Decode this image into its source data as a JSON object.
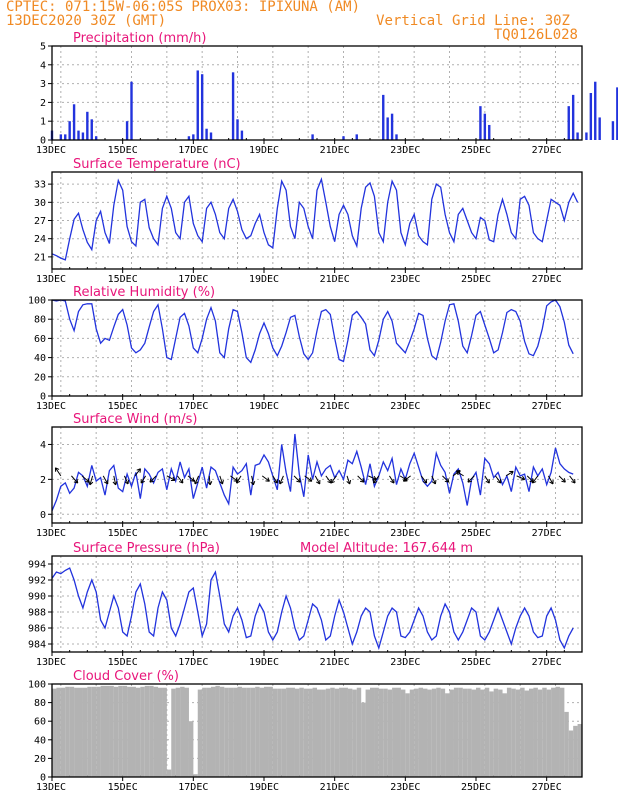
{
  "header": {
    "line1": "CPTEC:   071:15W-06:05S   PROX03: IPIXUNA (AM)",
    "line2_left": "13DEC2020 30Z (GMT)",
    "line2_right": "Vertical Grid Line: 30Z",
    "line3_right": "TQ0126L028"
  },
  "colors": {
    "series": "#2233dd",
    "title": "#e8157a",
    "header": "#f08a24",
    "cloud": "#b3b3b3",
    "grid": "#b0b0b0"
  },
  "chart_data": [
    {
      "id": "precip",
      "type": "bar",
      "title": "Precipitation (mm/h)",
      "x_start_day": 13,
      "x_days": 15,
      "step_hours": 3,
      "ylim": [
        0,
        5
      ],
      "yticks": [
        0,
        1,
        2,
        3,
        4,
        5
      ],
      "grid": true,
      "xticks": [
        "13DEC",
        "15DEC",
        "17DEC",
        "19DEC",
        "21DEC",
        "23DEC",
        "25DEC",
        "27DEC"
      ],
      "values": [
        0.5,
        0,
        0.3,
        0.3,
        1.0,
        1.9,
        0.5,
        0.4,
        1.5,
        1.1,
        0.2,
        0,
        0,
        0,
        0,
        0,
        0,
        1.0,
        3.1,
        0,
        0,
        0,
        0,
        0,
        0,
        0,
        0,
        0,
        0,
        0,
        0,
        0.2,
        0.3,
        3.7,
        3.5,
        0.6,
        0.4,
        0,
        0,
        0,
        0,
        3.6,
        1.1,
        0.5,
        0,
        0,
        0,
        0,
        0,
        0,
        0,
        0,
        0,
        0,
        0,
        0,
        0,
        0,
        0,
        0.3,
        0,
        0,
        0,
        0,
        0,
        0,
        0.2,
        0,
        0,
        0.3,
        0,
        0,
        0,
        0,
        0,
        2.4,
        1.2,
        1.4,
        0.3,
        0,
        0,
        0,
        0,
        0,
        0,
        0,
        0,
        0,
        0,
        0,
        0,
        0,
        0,
        0,
        0,
        0,
        0,
        1.8,
        1.4,
        0.8,
        0,
        0,
        0,
        0,
        0,
        0,
        0,
        0,
        0,
        0,
        0,
        0,
        0,
        0,
        0,
        0,
        0,
        1.8,
        2.4,
        0.4,
        0,
        0.4,
        2.5,
        3.1,
        1.2,
        0,
        0,
        1.0,
        2.8,
        0,
        0,
        0,
        0,
        0,
        0,
        0,
        0,
        1.1,
        0.3,
        1.0,
        2.5,
        0,
        0
      ]
    },
    {
      "id": "temp",
      "type": "line",
      "title": "Surface Temperature (nC)",
      "x_start_day": 13,
      "x_days": 15,
      "step_hours": 3,
      "ylim": [
        19,
        35
      ],
      "yticks": [
        21,
        24,
        27,
        30,
        33
      ],
      "grid": true,
      "xticks": [
        "13DEC",
        "15DEC",
        "17DEC",
        "19DEC",
        "21DEC",
        "23DEC",
        "25DEC",
        "27DEC"
      ],
      "values": [
        21.5,
        21.2,
        20.8,
        20.5,
        24.0,
        27.2,
        28.2,
        25.5,
        23.4,
        22.2,
        27.0,
        28.5,
        25.0,
        23.2,
        29.5,
        33.6,
        32.0,
        26.0,
        23.5,
        22.8,
        30.0,
        30.5,
        25.8,
        24.0,
        23.0,
        29.0,
        31.0,
        29.0,
        25.0,
        24.0,
        30.0,
        31.0,
        26.5,
        24.5,
        23.5,
        29.0,
        30.0,
        28.0,
        25.0,
        24.0,
        29.0,
        30.5,
        28.5,
        25.5,
        24.0,
        24.5,
        26.5,
        28.0,
        25.0,
        23.0,
        22.5,
        29.0,
        33.5,
        32.0,
        26.0,
        24.0,
        30.0,
        29.0,
        26.0,
        24.0,
        32.0,
        33.8,
        30.0,
        26.0,
        23.5,
        28.0,
        29.5,
        28.0,
        24.5,
        22.8,
        29.0,
        32.5,
        33.2,
        31.0,
        25.0,
        23.5,
        30.0,
        33.5,
        32.0,
        25.0,
        23.0,
        26.5,
        28.0,
        24.5,
        23.5,
        23.0,
        30.5,
        33.0,
        32.5,
        28.0,
        25.0,
        23.5,
        28.0,
        29.0,
        27.0,
        25.0,
        24.0,
        27.5,
        27.0,
        23.8,
        23.5,
        28.0,
        30.5,
        28.0,
        25.0,
        24.0,
        30.5,
        31.0,
        29.5,
        25.0,
        24.0,
        23.5,
        27.0,
        30.5,
        30.0,
        29.5,
        27.0,
        30.0,
        31.5,
        30.0
      ]
    },
    {
      "id": "rh",
      "type": "line",
      "title": "Relative Humidity (%)",
      "x_start_day": 13,
      "x_days": 15,
      "step_hours": 3,
      "ylim": [
        0,
        100
      ],
      "yticks": [
        0,
        20,
        40,
        60,
        80,
        100
      ],
      "grid": true,
      "xticks": [
        "13DEC",
        "15DEC",
        "17DEC",
        "19DEC",
        "21DEC",
        "23DEC",
        "25DEC",
        "27DEC"
      ],
      "values": [
        100,
        99,
        100,
        99,
        80,
        68,
        88,
        95,
        96,
        96,
        70,
        55,
        60,
        58,
        72,
        85,
        90,
        74,
        50,
        45,
        48,
        55,
        72,
        88,
        95,
        70,
        40,
        38,
        60,
        82,
        86,
        73,
        50,
        45,
        60,
        80,
        92,
        78,
        45,
        40,
        70,
        90,
        88,
        66,
        40,
        35,
        48,
        65,
        76,
        65,
        50,
        42,
        52,
        66,
        82,
        84,
        62,
        44,
        38,
        45,
        68,
        88,
        90,
        85,
        60,
        38,
        36,
        58,
        84,
        88,
        82,
        75,
        48,
        42,
        58,
        80,
        88,
        78,
        55,
        50,
        45,
        57,
        70,
        86,
        84,
        60,
        42,
        38,
        56,
        78,
        95,
        96,
        78,
        52,
        45,
        63,
        84,
        88,
        74,
        60,
        45,
        48,
        66,
        87,
        90,
        88,
        78,
        57,
        44,
        42,
        52,
        70,
        94,
        98,
        100,
        93,
        77,
        53,
        44
      ]
    },
    {
      "id": "wind",
      "type": "line",
      "title": "Surface Wind (m/s)",
      "x_start_day": 13,
      "x_days": 15,
      "step_hours": 3,
      "ylim": [
        -0.5,
        5
      ],
      "yticks": [
        0,
        2,
        4
      ],
      "grid": true,
      "xticks": [
        "13DEC",
        "15DEC",
        "17DEC",
        "19DEC",
        "21DEC",
        "23DEC",
        "25DEC",
        "27DEC"
      ],
      "values": [
        0.2,
        0.8,
        1.6,
        1.8,
        1.2,
        1.5,
        2.4,
        2.2,
        1.6,
        2.8,
        1.9,
        2.1,
        1.1,
        2.5,
        2.8,
        1.5,
        1.3,
        2.3,
        1.6,
        2.4,
        0.9,
        2.6,
        2.3,
        1.8,
        2.4,
        2.6,
        1.4,
        2.6,
        1.9,
        3.0,
        2.1,
        2.6,
        0.9,
        1.8,
        2.7,
        1.5,
        2.7,
        2.5,
        1.8,
        1.1,
        0.6,
        2.7,
        2.3,
        2.5,
        2.9,
        1.1,
        2.8,
        2.9,
        3.4,
        3.0,
        2.2,
        1.4,
        4.0,
        2.4,
        1.3,
        4.6,
        2.3,
        1.0,
        3.4,
        2.0,
        3.0,
        2.2,
        2.6,
        2.8,
        2.1,
        2.5,
        2.0,
        3.1,
        2.9,
        3.6,
        2.7,
        1.7,
        2.9,
        1.6,
        2.2,
        3.0,
        2.5,
        3.2,
        1.7,
        2.6,
        2.0,
        2.9,
        3.5,
        2.7,
        1.9,
        1.6,
        1.9,
        3.5,
        2.8,
        2.4,
        1.2,
        2.3,
        2.6,
        1.8,
        0.5,
        2.0,
        2.4,
        1.1,
        3.2,
        2.9,
        2.1,
        2.4,
        1.7,
        2.2,
        1.3,
        2.7,
        2.2,
        2.3,
        1.3,
        2.7,
        2.2,
        2.6,
        1.7,
        2.4,
        3.8,
        2.9,
        2.6,
        2.4,
        2.3
      ],
      "vectors": [
        [
          -0.6,
          0.9
        ],
        [
          0.7,
          -0.8
        ],
        [
          0.8,
          -0.7
        ],
        [
          -0.3,
          -1
        ],
        [
          0.5,
          -0.9
        ],
        [
          0.2,
          -1
        ],
        [
          0.4,
          -0.9
        ],
        [
          0.6,
          0.8
        ],
        [
          -0.5,
          -0.8
        ],
        [
          -0.7,
          -0.7
        ],
        [
          0.9,
          -0.5
        ],
        [
          0.6,
          -0.8
        ],
        [
          0.7,
          -0.6
        ],
        [
          -0.4,
          -0.9
        ],
        [
          0.1,
          -1
        ],
        [
          0.3,
          -0.9
        ],
        [
          0.8,
          -0.6
        ],
        [
          -0.5,
          -0.8
        ],
        [
          0.2,
          -1
        ],
        [
          0.8,
          -0.6
        ],
        [
          0.5,
          -0.8
        ],
        [
          -0.4,
          -0.9
        ],
        [
          0.7,
          -0.7
        ],
        [
          0.8,
          -0.6
        ],
        [
          0.5,
          -0.9
        ],
        [
          0.6,
          -0.8
        ],
        [
          -0.6,
          -0.8
        ],
        [
          0.3,
          -0.9
        ],
        [
          0.7,
          -0.7
        ],
        [
          0.9,
          -0.4
        ],
        [
          -0.6,
          -0.8
        ],
        [
          0.5,
          -0.8
        ],
        [
          0.8,
          -0.5
        ],
        [
          -0.8,
          -0.6
        ],
        [
          0.6,
          -0.8
        ],
        [
          0.4,
          -0.9
        ],
        [
          0.7,
          -0.7
        ],
        [
          0.8,
          0.6
        ],
        [
          -0.8,
          0.5
        ],
        [
          -0.7,
          -0.7
        ],
        [
          0.5,
          -0.8
        ],
        [
          0.6,
          -0.8
        ],
        [
          0.8,
          0.5
        ],
        [
          0.9,
          -0.4
        ],
        [
          0.7,
          -0.7
        ],
        [
          -0.6,
          -0.8
        ],
        [
          0.5,
          -0.9
        ],
        [
          0.7,
          -0.7
        ],
        [
          0.6,
          -0.8
        ]
      ]
    },
    {
      "id": "press",
      "type": "line",
      "title": "Surface Pressure (hPa)",
      "title2": "Model Altitude: 167.644 m",
      "x_start_day": 13,
      "x_days": 15,
      "step_hours": 3,
      "ylim": [
        983,
        995
      ],
      "yticks": [
        984,
        986,
        988,
        990,
        992,
        994
      ],
      "grid": true,
      "xticks": [
        "13DEC",
        "15DEC",
        "17DEC",
        "19DEC",
        "21DEC",
        "23DEC",
        "25DEC",
        "27DEC"
      ],
      "values": [
        992.2,
        993.0,
        992.8,
        993.2,
        993.5,
        992.0,
        990.0,
        988.5,
        990.5,
        992.0,
        990.5,
        987.0,
        986.0,
        988.0,
        990.0,
        988.5,
        985.5,
        985.0,
        987.5,
        990.5,
        991.5,
        989.0,
        985.5,
        985.0,
        988.5,
        990.5,
        989.5,
        986.0,
        985.0,
        986.5,
        988.5,
        990.5,
        991.0,
        988.0,
        985.0,
        986.5,
        992.0,
        993.0,
        990.0,
        986.5,
        985.5,
        987.5,
        988.5,
        987.0,
        984.8,
        985.0,
        987.5,
        989.0,
        988.0,
        985.5,
        984.5,
        985.5,
        988.0,
        990.0,
        988.5,
        986.0,
        984.5,
        985.0,
        987.0,
        989.0,
        988.5,
        987.0,
        984.5,
        985.0,
        987.5,
        989.5,
        988.0,
        986.0,
        984.0,
        985.5,
        987.5,
        988.5,
        988.0,
        985.0,
        983.5,
        985.5,
        987.5,
        988.5,
        988.0,
        985.0,
        984.8,
        985.5,
        987.0,
        988.5,
        987.5,
        985.5,
        984.5,
        985.0,
        987.5,
        989.0,
        988.0,
        985.5,
        984.5,
        985.5,
        987.0,
        988.5,
        988.0,
        985.0,
        984.5,
        985.5,
        987.0,
        988.5,
        987.0,
        985.5,
        984.0,
        986.0,
        987.5,
        988.5,
        987.5,
        985.5,
        984.8,
        985.0,
        987.5,
        988.5,
        987.0,
        984.5,
        983.5,
        985.0,
        986.0
      ]
    },
    {
      "id": "cloud",
      "type": "area",
      "title": "Cloud Cover (%)",
      "x_start_day": 13,
      "x_days": 15,
      "step_hours": 3,
      "ylim": [
        0,
        100
      ],
      "yticks": [
        0,
        20,
        40,
        60,
        80,
        100
      ],
      "grid": true,
      "xticks": [
        "13DEC",
        "15DEC",
        "17DEC",
        "19DEC",
        "21DEC",
        "23DEC",
        "25DEC",
        "27DEC"
      ],
      "values": [
        95,
        96,
        96,
        97,
        97,
        96,
        96,
        96,
        97,
        97,
        97,
        98,
        98,
        98,
        97,
        98,
        98,
        97,
        97,
        96,
        97,
        98,
        98,
        97,
        96,
        96,
        8,
        95,
        96,
        97,
        96,
        60,
        3,
        94,
        96,
        96,
        97,
        98,
        97,
        96,
        96,
        96,
        97,
        96,
        96,
        96,
        97,
        96,
        97,
        97,
        95,
        95,
        95,
        96,
        96,
        95,
        96,
        95,
        95,
        96,
        94,
        94,
        95,
        96,
        95,
        96,
        96,
        95,
        94,
        96,
        80,
        94,
        96,
        96,
        95,
        95,
        94,
        96,
        96,
        94,
        90,
        94,
        95,
        96,
        95,
        94,
        95,
        96,
        95,
        90,
        94,
        96,
        96,
        95,
        95,
        94,
        96,
        94,
        96,
        92,
        95,
        94,
        90,
        96,
        95,
        94,
        96,
        93,
        95,
        96,
        94,
        96,
        94,
        96,
        97,
        96,
        70,
        50,
        55,
        57
      ]
    }
  ]
}
